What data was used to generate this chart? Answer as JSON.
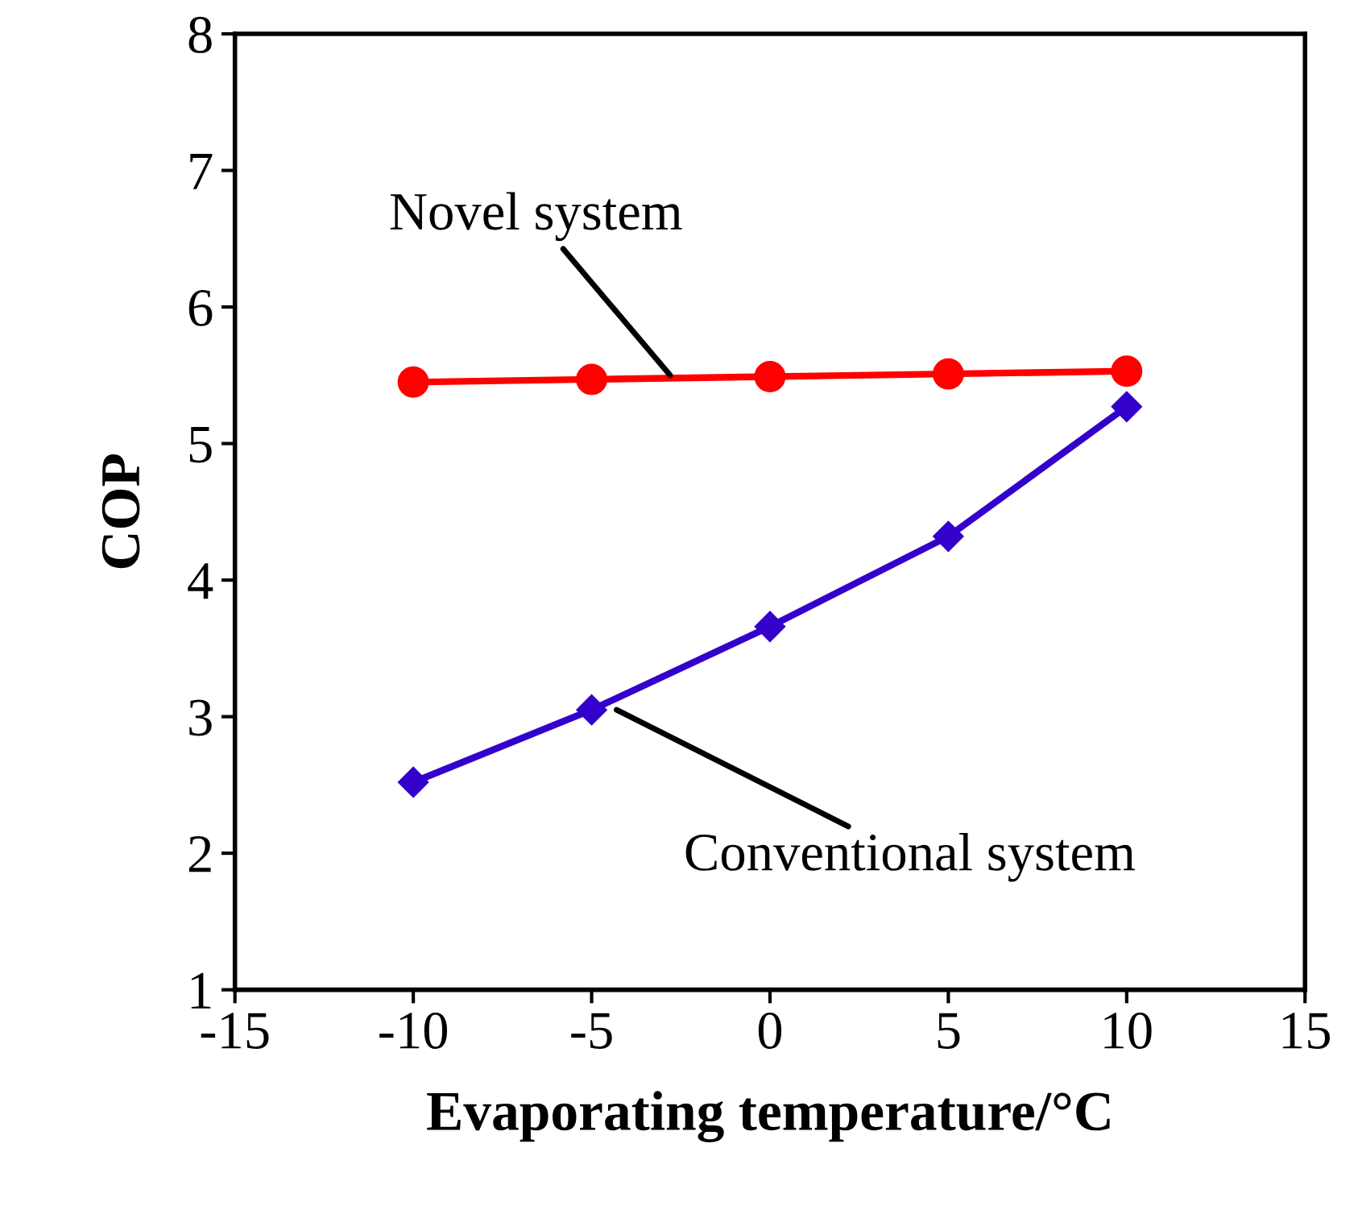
{
  "chart_data": {
    "type": "line",
    "xlabel": "Evaporating temperature/°C",
    "ylabel": "COP",
    "x": [
      -10,
      -5,
      0,
      5,
      10
    ],
    "series": [
      {
        "color": "#ff0000",
        "marker": "circle",
        "values": [
          5.45,
          5.47,
          5.49,
          5.51,
          5.53
        ]
      },
      {
        "color": "#3300cc",
        "marker": "diamond",
        "values": [
          2.52,
          3.05,
          3.66,
          4.32,
          5.27
        ]
      }
    ],
    "annotations": [
      {
        "text": "Novel system",
        "x": -2.8,
        "y": 5.5
      },
      {
        "text": "Conventional system",
        "x": -4.3,
        "y": 3.05
      }
    ],
    "xlim": [
      -15,
      15
    ],
    "ylim": [
      1,
      8
    ],
    "xticks": [
      -15,
      -10,
      -5,
      0,
      5,
      10,
      15
    ],
    "yticks": [
      1,
      2,
      3,
      4,
      5,
      6,
      7,
      8
    ],
    "grid": false,
    "legend": false
  }
}
